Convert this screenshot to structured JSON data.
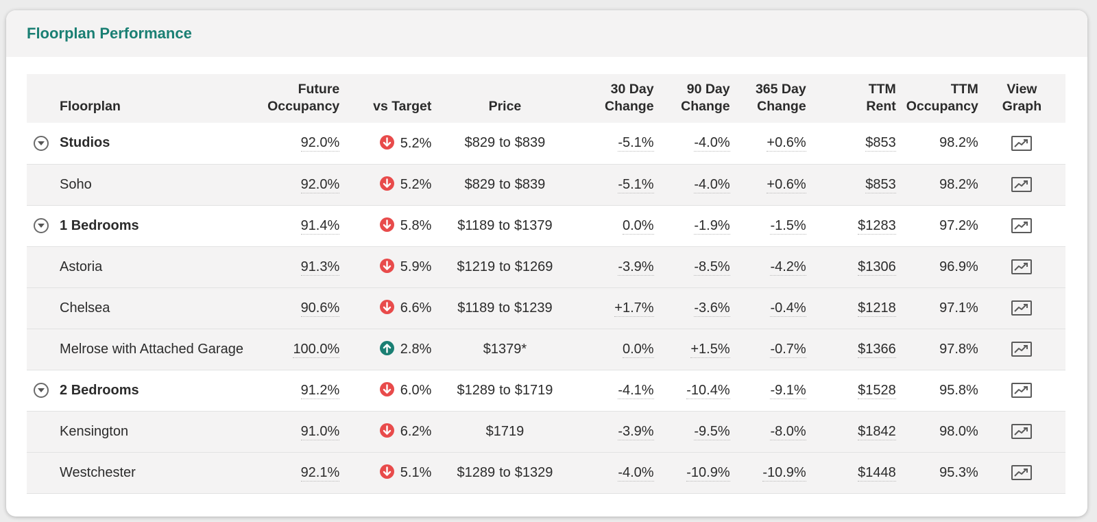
{
  "title": "Floorplan Performance",
  "columns": {
    "floorplan": [
      "",
      "Floorplan"
    ],
    "future_occupancy": [
      "Future",
      "Occupancy"
    ],
    "vs_target": [
      "",
      "vs Target"
    ],
    "price": [
      "",
      "Price"
    ],
    "change_30": [
      "30 Day",
      "Change"
    ],
    "change_90": [
      "90 Day",
      "Change"
    ],
    "change_365": [
      "365 Day",
      "Change"
    ],
    "ttm_rent": [
      "TTM",
      "Rent"
    ],
    "ttm_occupancy": [
      "TTM",
      "Occupancy"
    ],
    "view_graph": [
      "View",
      "Graph"
    ]
  },
  "colors": {
    "accent": "#1a7f73",
    "down": "#e84b4b",
    "up": "#1a7f73",
    "header_bg": "#f4f3f3"
  },
  "rows": [
    {
      "type": "group",
      "name": "Studios",
      "future_occupancy": "92.0%",
      "vs_target_dir": "down",
      "vs_target": "5.2%",
      "price_from": "$829",
      "price_to_word": "to",
      "price_to": "$839",
      "change_30": "-5.1%",
      "change_90": "-4.0%",
      "change_365": "+0.6%",
      "ttm_rent": "$853",
      "ttm_occupancy": "98.2%",
      "graph_icon": "chart-icon"
    },
    {
      "type": "child",
      "name": "Soho",
      "future_occupancy": "92.0%",
      "vs_target_dir": "down",
      "vs_target": "5.2%",
      "price_from": "$829",
      "price_to_word": "to",
      "price_to": "$839",
      "change_30": "-5.1%",
      "change_90": "-4.0%",
      "change_365": "+0.6%",
      "ttm_rent": "$853",
      "ttm_occupancy": "98.2%",
      "graph_icon": "chart-icon"
    },
    {
      "type": "group",
      "name": "1 Bedrooms",
      "future_occupancy": "91.4%",
      "vs_target_dir": "down",
      "vs_target": "5.8%",
      "price_from": "$1189",
      "price_to_word": "to",
      "price_to": "$1379",
      "change_30": "0.0%",
      "change_90": "-1.9%",
      "change_365": "-1.5%",
      "ttm_rent": "$1283",
      "ttm_occupancy": "97.2%",
      "graph_icon": "chart-icon"
    },
    {
      "type": "child",
      "name": "Astoria",
      "future_occupancy": "91.3%",
      "vs_target_dir": "down",
      "vs_target": "5.9%",
      "price_from": "$1219",
      "price_to_word": "to",
      "price_to": "$1269",
      "change_30": "-3.9%",
      "change_90": "-8.5%",
      "change_365": "-4.2%",
      "ttm_rent": "$1306",
      "ttm_occupancy": "96.9%",
      "graph_icon": "chart-icon"
    },
    {
      "type": "child",
      "name": "Chelsea",
      "future_occupancy": "90.6%",
      "vs_target_dir": "down",
      "vs_target": "6.6%",
      "price_from": "$1189",
      "price_to_word": "to",
      "price_to": "$1239",
      "change_30": "+1.7%",
      "change_90": "-3.6%",
      "change_365": "-0.4%",
      "ttm_rent": "$1218",
      "ttm_occupancy": "97.1%",
      "graph_icon": "chart-icon"
    },
    {
      "type": "child",
      "name": "Melrose with Attached Garage",
      "future_occupancy": "100.0%",
      "vs_target_dir": "up",
      "vs_target": "2.8%",
      "price_single": "$1379*",
      "change_30": "0.0%",
      "change_90": "+1.5%",
      "change_365": "-0.7%",
      "ttm_rent": "$1366",
      "ttm_occupancy": "97.8%",
      "graph_icon": "chart-icon"
    },
    {
      "type": "group",
      "name": "2 Bedrooms",
      "future_occupancy": "91.2%",
      "vs_target_dir": "down",
      "vs_target": "6.0%",
      "price_from": "$1289",
      "price_to_word": "to",
      "price_to": "$1719",
      "change_30": "-4.1%",
      "change_90": "-10.4%",
      "change_365": "-9.1%",
      "ttm_rent": "$1528",
      "ttm_occupancy": "95.8%",
      "graph_icon": "chart-icon"
    },
    {
      "type": "child",
      "name": "Kensington",
      "future_occupancy": "91.0%",
      "vs_target_dir": "down",
      "vs_target": "6.2%",
      "price_single": "$1719",
      "change_30": "-3.9%",
      "change_90": "-9.5%",
      "change_365": "-8.0%",
      "ttm_rent": "$1842",
      "ttm_occupancy": "98.0%",
      "graph_icon": "chart-icon"
    },
    {
      "type": "child",
      "name": "Westchester",
      "future_occupancy": "92.1%",
      "vs_target_dir": "down",
      "vs_target": "5.1%",
      "price_from": "$1289",
      "price_to_word": "to",
      "price_to": "$1329",
      "change_30": "-4.0%",
      "change_90": "-10.9%",
      "change_365": "-10.9%",
      "ttm_rent": "$1448",
      "ttm_occupancy": "95.3%",
      "graph_icon": "chart-icon"
    }
  ]
}
